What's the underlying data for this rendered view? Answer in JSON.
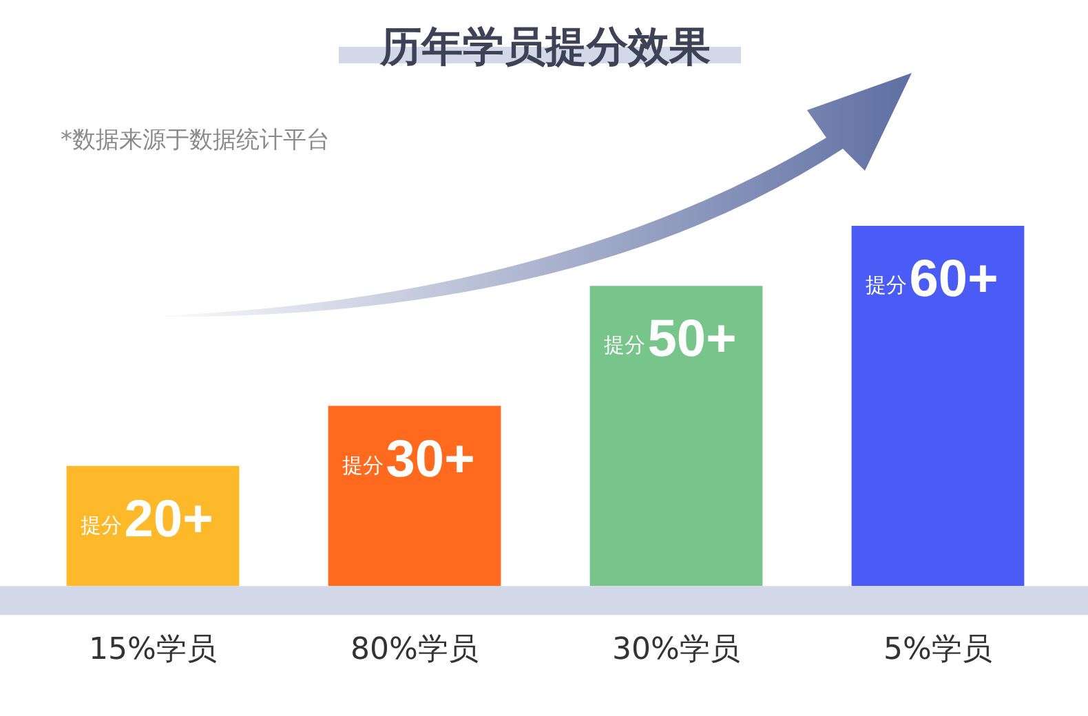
{
  "chart_data": {
    "type": "bar",
    "title": "历年学员提分效果",
    "annotations": [
      "*数据来源于数据统计平台"
    ],
    "categories": [
      "15%学员",
      "80%学员",
      "30%学员",
      "5%学员"
    ],
    "values": [
      20,
      30,
      50,
      60
    ],
    "colors": [
      "#fdb92a",
      "#ff6a1f",
      "#77c58a",
      "#4a5cf5"
    ],
    "value_labels": [
      "提分20+",
      "提分30+",
      "提分50+",
      "提分60+"
    ],
    "tick_labels": "x",
    "grid": false,
    "legend": false
  }
}
